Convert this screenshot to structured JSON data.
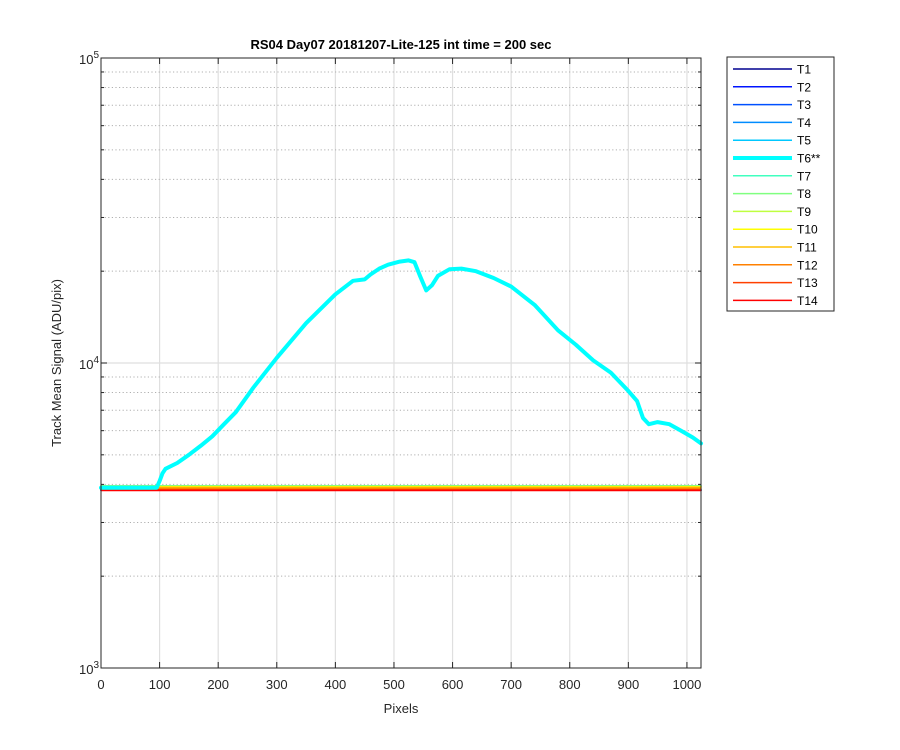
{
  "chart_data": {
    "type": "line",
    "title": "RS04 Day07 20181207-Lite-125 int time = 200 sec",
    "xlabel": "Pixels",
    "ylabel": "Track Mean Signal (ADU/pix)",
    "xlim": [
      0,
      1024
    ],
    "ylim": [
      1000,
      100000
    ],
    "yscale": "log",
    "grid": true,
    "minor_grid": true,
    "x_ticks": [
      0,
      100,
      200,
      300,
      400,
      500,
      600,
      700,
      800,
      900,
      1000
    ],
    "y_ticks": [
      {
        "value": 1000,
        "base": "10",
        "exp": "3"
      },
      {
        "value": 10000,
        "base": "10",
        "exp": "4"
      },
      {
        "value": 100000,
        "base": "10",
        "exp": "5"
      }
    ],
    "legend_position": "outside-right",
    "series": [
      {
        "name": "T1",
        "color": "#00008f",
        "highlight": false,
        "x": [
          0,
          1024
        ],
        "y": [
          3830,
          3830
        ]
      },
      {
        "name": "T2",
        "color": "#0014ff",
        "highlight": false,
        "x": [
          0,
          1024
        ],
        "y": [
          3835,
          3835
        ]
      },
      {
        "name": "T3",
        "color": "#0050ff",
        "highlight": false,
        "x": [
          0,
          1024
        ],
        "y": [
          3840,
          3840
        ]
      },
      {
        "name": "T4",
        "color": "#008cff",
        "highlight": false,
        "x": [
          0,
          1024
        ],
        "y": [
          3845,
          3845
        ]
      },
      {
        "name": "T5",
        "color": "#00c8ff",
        "highlight": false,
        "x": [
          0,
          1024
        ],
        "y": [
          3850,
          3850
        ]
      },
      {
        "name": "T6**",
        "color": "#00ffff",
        "highlight": true,
        "x": [
          0,
          95,
          100,
          105,
          110,
          130,
          150,
          170,
          190,
          210,
          230,
          260,
          300,
          350,
          400,
          430,
          450,
          460,
          475,
          490,
          510,
          525,
          535,
          545,
          555,
          565,
          575,
          595,
          615,
          640,
          670,
          700,
          740,
          780,
          810,
          840,
          870,
          900,
          915,
          925,
          935,
          950,
          970,
          990,
          1010,
          1024
        ],
        "y": [
          3900,
          3900,
          4100,
          4350,
          4500,
          4700,
          5000,
          5350,
          5750,
          6300,
          6900,
          8300,
          10400,
          13500,
          16800,
          18600,
          18800,
          19500,
          20400,
          21000,
          21500,
          21700,
          21400,
          19200,
          17300,
          18000,
          19300,
          20300,
          20400,
          20000,
          19000,
          17800,
          15500,
          12800,
          11500,
          10200,
          9300,
          8100,
          7500,
          6600,
          6300,
          6400,
          6300,
          6000,
          5700,
          5450
        ]
      },
      {
        "name": "T7",
        "color": "#40ffbf",
        "highlight": false,
        "x": [
          0,
          1024
        ],
        "y": [
          3960,
          3960
        ]
      },
      {
        "name": "T8",
        "color": "#80ff80",
        "highlight": false,
        "x": [
          0,
          1024
        ],
        "y": [
          3950,
          3950
        ]
      },
      {
        "name": "T9",
        "color": "#bfff40",
        "highlight": false,
        "x": [
          0,
          1024
        ],
        "y": [
          3940,
          3940
        ]
      },
      {
        "name": "T10",
        "color": "#ffff00",
        "highlight": false,
        "x": [
          0,
          1024
        ],
        "y": [
          3930,
          3930
        ]
      },
      {
        "name": "T11",
        "color": "#ffbf00",
        "highlight": false,
        "x": [
          0,
          1024
        ],
        "y": [
          3910,
          3910
        ]
      },
      {
        "name": "T12",
        "color": "#ff8000",
        "highlight": false,
        "x": [
          0,
          1024
        ],
        "y": [
          3880,
          3880
        ]
      },
      {
        "name": "T13",
        "color": "#ff4000",
        "highlight": false,
        "x": [
          0,
          1024
        ],
        "y": [
          3840,
          3840
        ]
      },
      {
        "name": "T14",
        "color": "#ff0000",
        "highlight": false,
        "x": [
          0,
          1024
        ],
        "y": [
          3820,
          3820
        ]
      }
    ]
  }
}
